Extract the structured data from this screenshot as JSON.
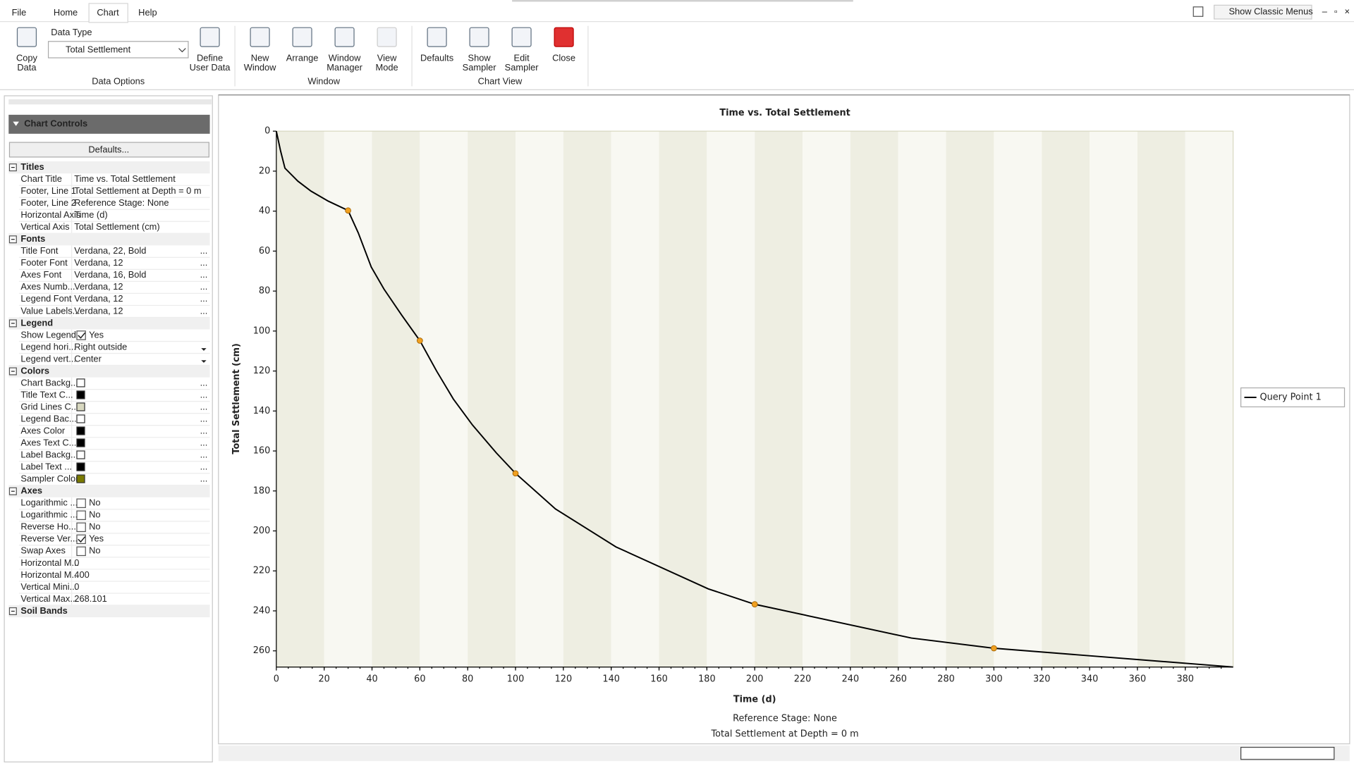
{
  "ribbon": {
    "tabs": [
      "File",
      "Home",
      "Chart",
      "Help"
    ],
    "classic_menus": "Show Classic Menus",
    "data_type_label": "Data Type",
    "data_type_value": "Total Settlement",
    "groups": [
      {
        "label": "Data Options",
        "buttons": [
          {
            "lines": [
              "Copy",
              "Data"
            ]
          },
          {
            "lines": [
              "Define",
              "User Data"
            ]
          }
        ]
      },
      {
        "label": "Window",
        "buttons": [
          {
            "lines": [
              "New",
              "Window"
            ]
          },
          {
            "lines": [
              "Arrange"
            ]
          },
          {
            "lines": [
              "Window",
              "Manager"
            ]
          },
          {
            "lines": [
              "View",
              "Mode"
            ],
            "disabled": true
          }
        ]
      },
      {
        "label": "Chart View",
        "buttons": [
          {
            "lines": [
              "Defaults"
            ]
          },
          {
            "lines": [
              "Show",
              "Sampler"
            ]
          },
          {
            "lines": [
              "Edit",
              "Sampler"
            ]
          },
          {
            "lines": [
              "Close"
            ]
          }
        ]
      }
    ]
  },
  "panel": {
    "title": "Chart Controls",
    "defaults_button": "Defaults...",
    "sections": [
      {
        "title": "Titles",
        "rows": [
          {
            "label": "Chart Title",
            "kind": "text",
            "value": "Time vs. Total Settlement"
          },
          {
            "label": "Footer, Line 1",
            "kind": "text",
            "value": "Total Settlement at Depth = 0 m"
          },
          {
            "label": "Footer, Line 2",
            "kind": "text",
            "value": "Reference Stage: None"
          },
          {
            "label": "Horizontal Axis",
            "kind": "text",
            "value": "Time (d)"
          },
          {
            "label": "Vertical Axis",
            "kind": "text",
            "value": "Total Settlement (cm)"
          }
        ]
      },
      {
        "title": "Fonts",
        "rows": [
          {
            "label": "Title Font",
            "kind": "font",
            "value": "Verdana, 22, Bold"
          },
          {
            "label": "Footer Font",
            "kind": "font",
            "value": "Verdana, 12"
          },
          {
            "label": "Axes Font",
            "kind": "font",
            "value": "Verdana, 16, Bold"
          },
          {
            "label": "Axes Numb...",
            "kind": "font",
            "value": "Verdana, 12"
          },
          {
            "label": "Legend Font",
            "kind": "font",
            "value": "Verdana, 12"
          },
          {
            "label": "Value Labels...",
            "kind": "font",
            "value": "Verdana, 12"
          }
        ]
      },
      {
        "title": "Legend",
        "rows": [
          {
            "label": "Show Legend",
            "kind": "check",
            "checked": true,
            "value": "Yes"
          },
          {
            "label": "Legend hori...",
            "kind": "dropdown",
            "value": "Right outside"
          },
          {
            "label": "Legend vert...",
            "kind": "dropdown",
            "value": "Center"
          }
        ]
      },
      {
        "title": "Colors",
        "rows": [
          {
            "label": "Chart Backg...",
            "kind": "color",
            "color": "#ffffff"
          },
          {
            "label": "Title Text C...",
            "kind": "color",
            "color": "#000000"
          },
          {
            "label": "Grid Lines C...",
            "kind": "color",
            "color": "#d8d8c0"
          },
          {
            "label": "Legend Bac...",
            "kind": "color",
            "color": "#ffffff"
          },
          {
            "label": "Axes Color",
            "kind": "color",
            "color": "#000000"
          },
          {
            "label": "Axes Text C...",
            "kind": "color",
            "color": "#000000"
          },
          {
            "label": "Label Backg...",
            "kind": "color",
            "color": "#ffffff"
          },
          {
            "label": "Label Text ...",
            "kind": "color",
            "color": "#000000"
          },
          {
            "label": "Sampler Color",
            "kind": "color",
            "color": "#7a7a00"
          }
        ]
      },
      {
        "title": "Axes",
        "rows": [
          {
            "label": "Logarithmic ...",
            "kind": "check",
            "checked": false,
            "value": "No"
          },
          {
            "label": "Logarithmic ...",
            "kind": "check",
            "checked": false,
            "value": "No"
          },
          {
            "label": "Reverse Ho...",
            "kind": "check",
            "checked": false,
            "value": "No"
          },
          {
            "label": "Reverse Ver...",
            "kind": "check",
            "checked": true,
            "value": "Yes"
          },
          {
            "label": "Swap Axes",
            "kind": "check",
            "checked": false,
            "value": "No"
          },
          {
            "label": "Horizontal M...",
            "kind": "text",
            "value": "0"
          },
          {
            "label": "Horizontal M...",
            "kind": "text",
            "value": "400"
          },
          {
            "label": "Vertical Mini...",
            "kind": "text",
            "value": "0"
          },
          {
            "label": "Vertical Max...",
            "kind": "text",
            "value": "268.101"
          }
        ]
      },
      {
        "title": "Soil Bands",
        "rows": []
      }
    ]
  },
  "chart_data": {
    "type": "line",
    "title": "Time vs. Total Settlement",
    "x_label": "Time (d)",
    "y_label": "Total Settlement (cm)",
    "footer": [
      "Reference Stage: None",
      "Total Settlement at Depth = 0 m"
    ],
    "xlim": [
      0,
      400
    ],
    "ylim": [
      0,
      268.101
    ],
    "reverse_y": true,
    "xticks": [
      0,
      20,
      40,
      60,
      80,
      100,
      120,
      140,
      160,
      180,
      200,
      220,
      240,
      260,
      280,
      300,
      320,
      340,
      360,
      380
    ],
    "yticks": [
      0,
      20,
      40,
      60,
      80,
      100,
      120,
      140,
      160,
      180,
      200,
      220,
      240,
      260
    ],
    "legend": "right",
    "series": [
      {
        "name": "Query Point 1",
        "color": "#000000",
        "x": [
          0,
          1.8,
          3.6,
          9,
          14.5,
          21.7,
          30,
          34.3,
          39.7,
          45,
          52.4,
          60,
          67,
          74,
          82,
          92,
          100,
          116.7,
          142,
          180.6,
          200,
          265.5,
          300,
          400
        ],
        "values": [
          0,
          10,
          18.5,
          25,
          30,
          35,
          39.7,
          51,
          68,
          79,
          92,
          104.8,
          120,
          134,
          147,
          161,
          171.2,
          189,
          208,
          229,
          236.7,
          253.6,
          258.7,
          268.101
        ]
      }
    ],
    "markers": {
      "color": "#f0a020",
      "x": [
        30,
        60,
        100,
        200,
        300
      ],
      "values": [
        39.7,
        104.8,
        171.2,
        236.7,
        258.7
      ]
    }
  }
}
